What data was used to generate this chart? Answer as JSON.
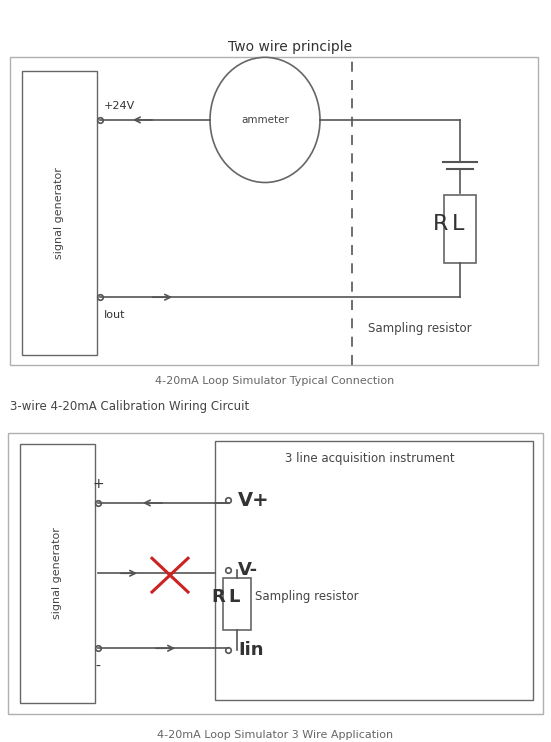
{
  "fig_width": 5.51,
  "fig_height": 7.42,
  "bg_color": "#ffffff",
  "d1": {
    "title": "Two wire principle",
    "caption": "4-20mA Loop Simulator Typical Connection",
    "sg_label": "signal generator",
    "plus24v": "+24V",
    "iout": "Iout",
    "ammeter": "ammeter",
    "rl": "RL",
    "sampling": "Sampling resistor"
  },
  "d2": {
    "section_title": "3-wire 4-20mA Calibration Wiring Circuit",
    "caption": "4-20mA Loop Simulator 3 Wire Application",
    "sg_label": "signal generator",
    "inst_title": "3 line acquisition instrument",
    "vplus": "V+",
    "vminus": "V-",
    "rl": "RL",
    "sampling": "Sampling resistor",
    "iin": "Iin",
    "plus": "+",
    "minus": "-"
  }
}
